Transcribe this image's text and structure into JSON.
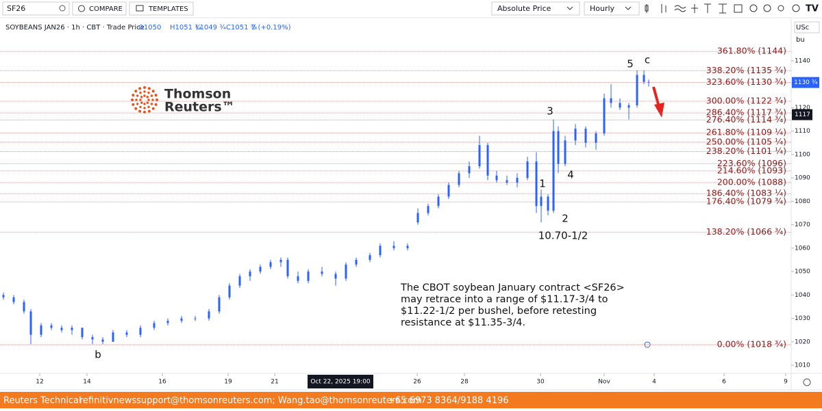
{
  "toolbar": {
    "symbol": "SF26",
    "compare": "COMPARE",
    "templates": "TEMPLATES",
    "price_mode": "Absolute Price",
    "interval": "Hourly"
  },
  "legend": {
    "title": "SOYBEANS JAN26 · 1h · CBT · Trade Price",
    "open": "O1050",
    "high": "H1051 ¾",
    "low": "L1049 ¾",
    "close": "C1051 ¾",
    "change": "2 (+0.19%)"
  },
  "logo": {
    "line1": "Thomson",
    "line2": "Reuters™"
  },
  "footer": {
    "source": "Reuters Technical",
    "emails": "refinitivnewssupport@thomsonreuters.com; Wang.tao@thomsonreuters.com",
    "phone": "+65 6973 8364/9188 4196"
  },
  "chart_data": {
    "type": "candlestick",
    "unit_top": "USc",
    "unit_bottom": "bu",
    "color": "#2962ff",
    "x": [
      1,
      4,
      7,
      9,
      12,
      15,
      18,
      21,
      24,
      27,
      30,
      33,
      37,
      41,
      45,
      49,
      53,
      57,
      61,
      64,
      67,
      70,
      73,
      76,
      79,
      82,
      84,
      87,
      90,
      94,
      98,
      101,
      104,
      108,
      111,
      115,
      119,
      122,
      125,
      128,
      131,
      134,
      137,
      140,
      142.4,
      145,
      148,
      151,
      154,
      156.6,
      158,
      160,
      161.6,
      163,
      165,
      168,
      171,
      174,
      176.4,
      178.4,
      181,
      183.6,
      186,
      188,
      189.4
    ],
    "open": [
      1040,
      1039,
      1037,
      1033,
      1023,
      1027,
      1026,
      1025,
      1026,
      1022,
      1021,
      1020,
      1024,
      1023,
      1026,
      1028,
      1029,
      1030,
      1030,
      1033,
      1039,
      1044,
      1048,
      1050,
      1052,
      1054,
      1055,
      1048,
      1046,
      1050,
      1049,
      1047,
      1053,
      1055,
      1057,
      1061,
      1060,
      1071,
      1075,
      1078,
      1082,
      1087,
      1092,
      1095,
      1104,
      1091,
      1089,
      1088,
      1090,
      1097,
      1078,
      1082,
      1076,
      1110,
      1096,
      1106,
      1111,
      1105,
      1109,
      1124,
      1122,
      1120,
      1121,
      1134,
      1131
    ],
    "high": [
      1041,
      1040,
      1038,
      1034,
      1028,
      1028,
      1027,
      1027,
      1026,
      1023,
      1022,
      1025,
      1025,
      1027,
      1029,
      1030,
      1031,
      1031,
      1034,
      1040,
      1045,
      1049,
      1051,
      1053,
      1055,
      1056,
      1056,
      1050,
      1051,
      1052,
      1050,
      1054,
      1056,
      1058,
      1062,
      1063,
      1062,
      1077,
      1079,
      1083,
      1088,
      1093,
      1097,
      1108,
      1105,
      1093,
      1091,
      1092,
      1099,
      1101,
      1085,
      1083,
      1115,
      1112,
      1108,
      1113,
      1112,
      1110,
      1126,
      1130,
      1124,
      1122,
      1136,
      1136,
      1132
    ],
    "low": [
      1038,
      1036,
      1032,
      1019,
      1022,
      1025,
      1024,
      1023,
      1021,
      1019,
      1019,
      1020,
      1022,
      1022,
      1025,
      1027,
      1028,
      1029,
      1029,
      1032,
      1038,
      1043,
      1046,
      1049,
      1051,
      1052,
      1047,
      1045,
      1045,
      1048,
      1044,
      1046,
      1052,
      1054,
      1056,
      1059,
      1059,
      1070,
      1074,
      1077,
      1081,
      1086,
      1090,
      1094,
      1089,
      1088,
      1087,
      1086,
      1089,
      1075,
      1071,
      1074,
      1075,
      1092,
      1095,
      1104,
      1103,
      1102,
      1108,
      1120,
      1119,
      1115,
      1120,
      1130,
      1129
    ],
    "close": [
      1039,
      1037,
      1033,
      1023,
      1027,
      1026,
      1025,
      1026,
      1022,
      1021,
      1020,
      1024,
      1023,
      1026,
      1028,
      1029,
      1030,
      1030,
      1033,
      1039,
      1044,
      1048,
      1050,
      1052,
      1054,
      1055,
      1048,
      1046,
      1050,
      1049,
      1047,
      1053,
      1055,
      1057,
      1061,
      1060,
      1061,
      1075,
      1078,
      1082,
      1087,
      1092,
      1095,
      1104,
      1091,
      1089,
      1088,
      1090,
      1097,
      1078,
      1082,
      1076,
      1110,
      1096,
      1106,
      1111,
      1105,
      1109,
      1124,
      1122,
      1120,
      1121,
      1134,
      1131,
      1130.75
    ],
    "xlim": [
      0,
      231
    ],
    "ylim": [
      1006.8,
      1157.8
    ],
    "xticks": [
      {
        "value": 11.6,
        "label": "12"
      },
      {
        "value": 25.4,
        "label": "14"
      },
      {
        "value": 47.4,
        "label": "16"
      },
      {
        "value": 66.6,
        "label": "19"
      },
      {
        "value": 80.2,
        "label": "21"
      },
      {
        "value": 121.8,
        "label": "26"
      },
      {
        "value": 135.6,
        "label": "28"
      },
      {
        "value": 157.8,
        "label": "30"
      },
      {
        "value": 176.4,
        "label": "Nov"
      },
      {
        "value": 191,
        "label": "4"
      },
      {
        "value": 211.4,
        "label": "6"
      },
      {
        "value": 229.4,
        "label": "9"
      }
    ],
    "yticks": [
      1010,
      1020,
      1030,
      1040,
      1050,
      1060,
      1070,
      1080,
      1090,
      1100,
      1110,
      1120,
      1130,
      1140
    ],
    "fib_levels": [
      {
        "value": 1144,
        "label": "361.80% (1144)"
      },
      {
        "value": 1135.75,
        "label": "338.20% (1135 ¾)"
      },
      {
        "value": 1130.75,
        "label": "323.60% (1130 ¾)"
      },
      {
        "value": 1122.75,
        "label": "300.00% (1122 ¾)"
      },
      {
        "value": 1117.75,
        "label": "286.40% (1117 ¾)"
      },
      {
        "value": 1114.75,
        "label": "276.40% (1114 ¾)"
      },
      {
        "value": 1109.25,
        "label": "261.80% (1109 ¼)"
      },
      {
        "value": 1105.25,
        "label": "250.00% (1105 ¼)"
      },
      {
        "value": 1101.25,
        "label": "238.20% (1101 ¼)"
      },
      {
        "value": 1096,
        "label": "223.60% (1096)"
      },
      {
        "value": 1093,
        "label": "214.60% (1093)"
      },
      {
        "value": 1088,
        "label": "200.00% (1088)"
      },
      {
        "value": 1083.25,
        "label": "186.40% (1083 ¼)"
      },
      {
        "value": 1079.75,
        "label": "176.40% (1079 ¾)"
      },
      {
        "value": 1066.75,
        "label": "138.20% (1066 ¾)"
      },
      {
        "value": 1018.75,
        "label": "0.00% (1018 ¾)"
      }
    ],
    "wave_labels": [
      "5",
      "c",
      "3",
      "4",
      "1",
      "2",
      "b",
      "10.70-1/2"
    ],
    "note": [
      "The CBOT soybean January contract <SF26>",
      "may retrace into a range of $11.17-3/4 to",
      "$11.22-1/2 per bushel, before retesting",
      "resistance at $11.35-3/4."
    ],
    "last_price": {
      "value": 1130.75,
      "label": "1130 ¾"
    },
    "crosshair": {
      "x": {
        "value": 99.4,
        "label": "Oct 22, 2025  19:00"
      },
      "y": {
        "value": 1117,
        "label": "1117"
      }
    }
  }
}
